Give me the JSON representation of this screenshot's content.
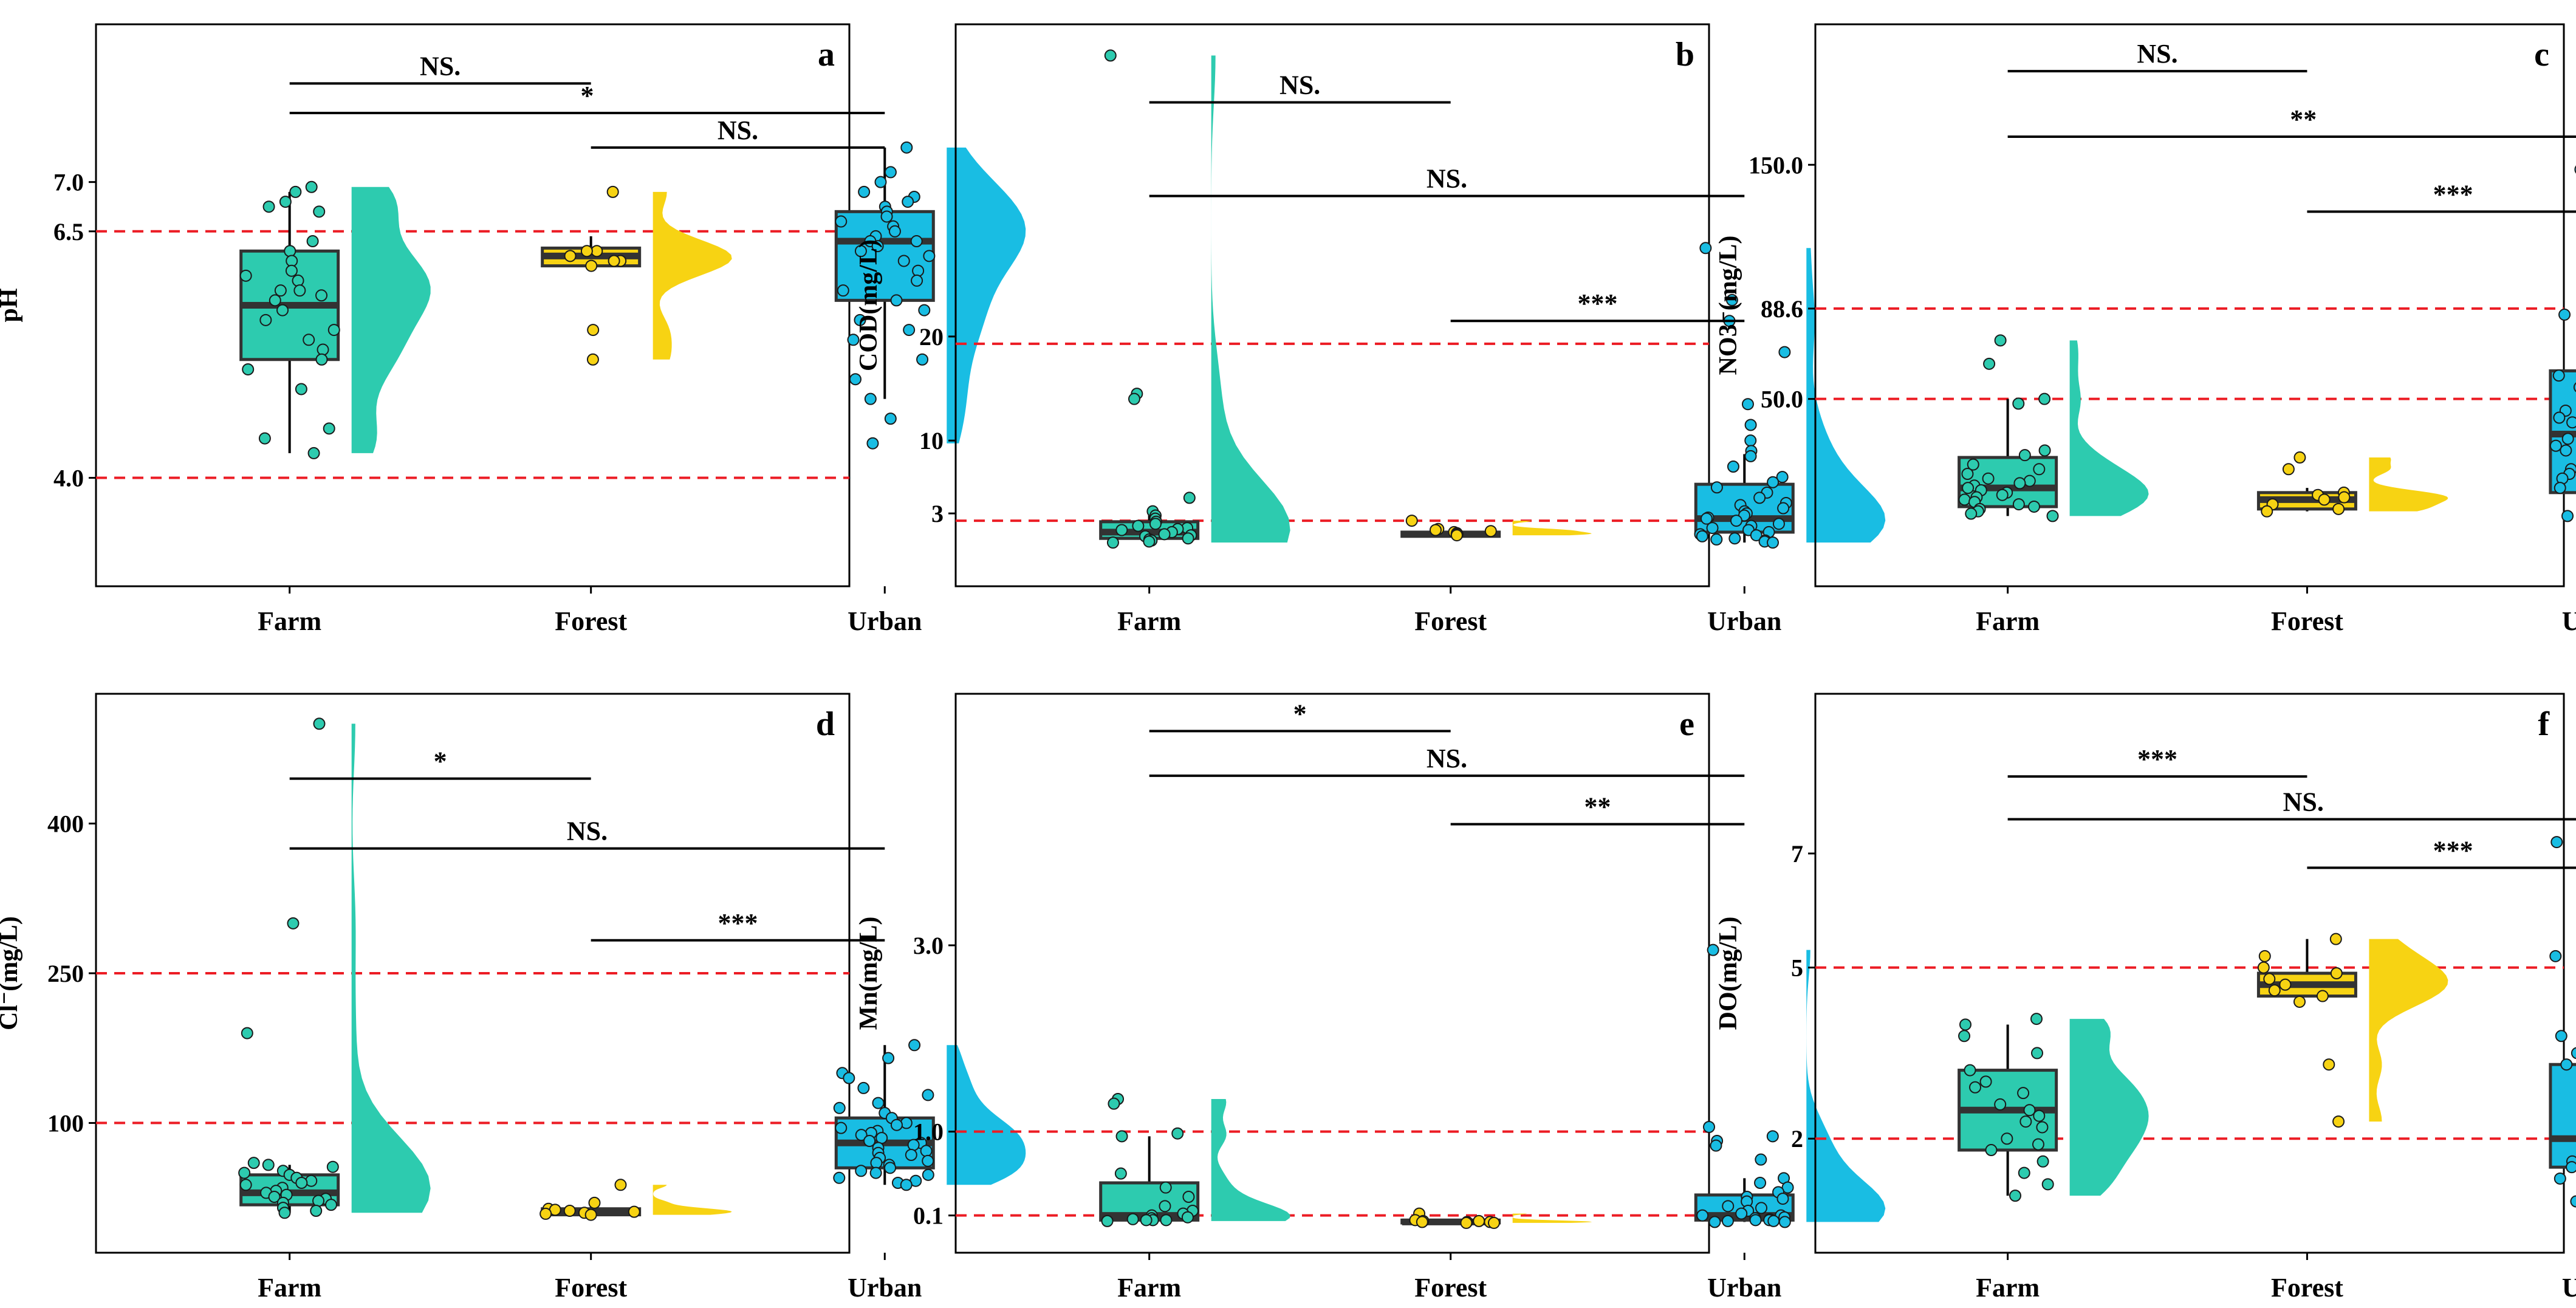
{
  "colors": {
    "farm": "#2dcbaf",
    "forest": "#f7d313",
    "urban": "#19bde3",
    "reference": "#ec1c24",
    "axis": "#000000",
    "median": "#333333"
  },
  "chart_data": [
    {
      "panel": "a",
      "type": "box",
      "ylabel": "pH",
      "ylim": [
        2.9,
        8.6
      ],
      "categories": [
        "Farm",
        "Forest",
        "Urban"
      ],
      "yticks": [
        4.0,
        6.5,
        7.0
      ],
      "ytick_labels": [
        "4.0",
        "6.5",
        "7.0"
      ],
      "reference_lines": [
        4.0,
        6.5
      ],
      "boxes": [
        {
          "group": "Farm",
          "min": 4.25,
          "q1": 5.2,
          "median": 5.75,
          "q3": 6.3,
          "max": 6.9
        },
        {
          "group": "Forest",
          "min": 6.15,
          "q1": 6.15,
          "median": 6.25,
          "q3": 6.33,
          "max": 6.45
        },
        {
          "group": "Urban",
          "min": 4.8,
          "q1": 5.8,
          "median": 6.4,
          "q3": 6.7,
          "max": 7.35
        }
      ],
      "points": {
        "Farm": [
          6.95,
          6.9,
          6.8,
          6.75,
          6.7,
          6.4,
          6.3,
          6.2,
          6.1,
          6.05,
          6.0,
          5.9,
          5.9,
          5.85,
          5.8,
          5.7,
          5.6,
          5.5,
          5.4,
          5.3,
          5.2,
          5.1,
          4.9,
          4.5,
          4.4,
          4.25
        ],
        "Forest": [
          6.9,
          6.3,
          6.3,
          6.25,
          6.2,
          6.2,
          6.15,
          5.5,
          5.2
        ],
        "Urban": [
          7.35,
          7.1,
          7.0,
          6.9,
          6.85,
          6.8,
          6.75,
          6.7,
          6.65,
          6.6,
          6.55,
          6.5,
          6.45,
          6.4,
          6.4,
          6.35,
          6.3,
          6.25,
          6.2,
          6.1,
          6.0,
          5.9,
          5.8,
          5.7,
          5.6,
          5.5,
          5.4,
          5.2,
          5.0,
          4.8,
          4.6,
          4.35
        ]
      },
      "significance": [
        {
          "from": "Farm",
          "to": "Forest",
          "label": "NS.",
          "y": 8.0
        },
        {
          "from": "Farm",
          "to": "Urban",
          "label": "*",
          "y": 7.7
        },
        {
          "from": "Forest",
          "to": "Urban",
          "label": "NS.",
          "y": 7.35
        }
      ],
      "ticks": {
        "x": [
          "Farm",
          "Forest",
          "Urban"
        ]
      }
    },
    {
      "panel": "b",
      "type": "box",
      "ylabel": "COD(mg/L)",
      "ylim": [
        -4,
        50
      ],
      "categories": [
        "Farm",
        "Forest",
        "Urban"
      ],
      "yticks": [
        3,
        10,
        20
      ],
      "ytick_labels": [
        "3",
        "10",
        "20"
      ],
      "reference_lines": [
        2.3,
        19.3
      ],
      "boxes": [
        {
          "group": "Farm",
          "min": 0.2,
          "q1": 0.6,
          "median": 1.2,
          "q3": 2.2,
          "max": 3.0
        },
        {
          "group": "Forest",
          "min": 0.7,
          "q1": 0.8,
          "median": 1.0,
          "q3": 1.2,
          "max": 1.5
        },
        {
          "group": "Urban",
          "min": 0.2,
          "q1": 1.2,
          "median": 2.5,
          "q3": 5.8,
          "max": 8.7
        }
      ],
      "points": {
        "Farm": [
          47.0,
          14.5,
          14.0,
          4.5,
          3.2,
          2.8,
          2.5,
          2.2,
          2.0,
          1.8,
          1.6,
          1.5,
          1.4,
          1.2,
          1.0,
          0.9,
          0.8,
          0.6,
          0.5,
          0.4,
          0.3,
          0.2
        ],
        "Forest": [
          2.3,
          1.5,
          1.4,
          1.3,
          1.2,
          1.1,
          1.0,
          1.0,
          0.9
        ],
        "Urban": [
          28.5,
          23.5,
          21.5,
          18.5,
          13.5,
          11.5,
          10.0,
          9.0,
          8.5,
          7.5,
          6.5,
          6.0,
          5.5,
          5.0,
          4.5,
          4.0,
          3.8,
          3.5,
          3.2,
          3.0,
          2.8,
          2.6,
          2.5,
          2.3,
          2.0,
          1.8,
          1.6,
          1.4,
          1.2,
          1.0,
          0.9,
          0.8,
          0.6,
          0.5,
          0.4,
          0.3,
          0.2
        ]
      },
      "significance": [
        {
          "from": "Farm",
          "to": "Forest",
          "label": "NS.",
          "y": 42.5
        },
        {
          "from": "Farm",
          "to": "Urban",
          "label": "NS.",
          "y": 33.5
        },
        {
          "from": "Forest",
          "to": "Urban",
          "label": "***",
          "y": 21.5
        }
      ],
      "ticks": {
        "x": [
          "Farm",
          "Forest",
          "Urban"
        ]
      }
    },
    {
      "panel": "c",
      "type": "box",
      "ylabel": "NO3⁻(mg/L)",
      "ylim": [
        -30,
        210
      ],
      "categories": [
        "Farm",
        "Forest",
        "Urban"
      ],
      "yticks": [
        50.0,
        88.6,
        150.0
      ],
      "ytick_labels": [
        "50.0",
        "88.6",
        "150.0"
      ],
      "reference_lines": [
        50.0,
        88.6
      ],
      "boxes": [
        {
          "group": "Farm",
          "min": 0,
          "q1": 4,
          "median": 12,
          "q3": 25,
          "max": 50
        },
        {
          "group": "Forest",
          "min": 2,
          "q1": 3,
          "median": 7,
          "q3": 10,
          "max": 12
        },
        {
          "group": "Urban",
          "min": 2,
          "q1": 10,
          "median": 35,
          "q3": 62,
          "max": 121
        }
      ],
      "points": {
        "Farm": [
          75,
          65,
          50,
          48,
          28,
          26,
          22,
          20,
          18,
          16,
          15,
          14,
          13,
          12,
          11,
          10,
          9,
          8,
          7,
          6,
          5,
          4,
          3,
          2,
          1,
          0
        ],
        "Forest": [
          25,
          20,
          10,
          9,
          8,
          7,
          5,
          3,
          2
        ],
        "Urban": [
          198,
          148,
          123,
          109,
          107,
          91,
          86,
          80,
          60,
          55,
          50,
          48,
          45,
          42,
          40,
          38,
          35,
          33,
          30,
          28,
          25,
          22,
          20,
          18,
          16,
          14,
          12,
          10,
          8,
          6,
          4,
          2,
          0
        ]
      },
      "significance": [
        {
          "from": "Farm",
          "to": "Forest",
          "label": "NS.",
          "y": 190
        },
        {
          "from": "Farm",
          "to": "Urban",
          "label": "**",
          "y": 162
        },
        {
          "from": "Forest",
          "to": "Urban",
          "label": "***",
          "y": 130
        }
      ],
      "ticks": {
        "x": [
          "Farm",
          "Forest",
          "Urban"
        ]
      }
    },
    {
      "panel": "d",
      "type": "box",
      "ylabel": "Cl⁻(mg/L)",
      "ylim": [
        -30,
        530
      ],
      "categories": [
        "Farm",
        "Forest",
        "Urban"
      ],
      "yticks": [
        100,
        250,
        400
      ],
      "ytick_labels": [
        "100",
        "250",
        "400"
      ],
      "reference_lines": [
        100,
        250
      ],
      "boxes": [
        {
          "group": "Farm",
          "min": 10,
          "q1": 18,
          "median": 30,
          "q3": 48,
          "max": 58
        },
        {
          "group": "Forest",
          "min": 8,
          "q1": 8,
          "median": 12,
          "q3": 14,
          "max": 16
        },
        {
          "group": "Urban",
          "min": 38,
          "q1": 55,
          "median": 80,
          "q3": 105,
          "max": 178
        }
      ],
      "points": {
        "Farm": [
          500,
          300,
          190,
          60,
          58,
          56,
          52,
          50,
          48,
          45,
          42,
          40,
          38,
          35,
          32,
          30,
          28,
          26,
          24,
          22,
          20,
          18,
          15,
          12,
          10
        ],
        "Forest": [
          38,
          20,
          14,
          13,
          12,
          11,
          10,
          9,
          8
        ],
        "Urban": [
          178,
          165,
          150,
          145,
          135,
          128,
          120,
          115,
          110,
          105,
          100,
          98,
          95,
          92,
          90,
          88,
          85,
          82,
          80,
          78,
          75,
          72,
          70,
          68,
          65,
          62,
          60,
          58,
          55,
          52,
          50,
          48,
          45,
          42,
          40,
          38
        ]
      },
      "significance": [
        {
          "from": "Farm",
          "to": "Forest",
          "label": "*",
          "y": 445
        },
        {
          "from": "Farm",
          "to": "Urban",
          "label": "NS.",
          "y": 375
        },
        {
          "from": "Forest",
          "to": "Urban",
          "label": "***",
          "y": 283
        }
      ],
      "ticks": {
        "x": [
          "Farm",
          "Forest",
          "Urban"
        ]
      }
    },
    {
      "panel": "e",
      "type": "box",
      "ylabel": "Mn(mg/L)",
      "ylim": [
        -0.3,
        5.7
      ],
      "categories": [
        "Farm",
        "Forest",
        "Urban"
      ],
      "yticks": [
        0.1,
        1.0,
        3.0
      ],
      "ytick_labels": [
        "0.1",
        "1.0",
        "3.0"
      ],
      "reference_lines": [
        0.1,
        1.0
      ],
      "boxes": [
        {
          "group": "Farm",
          "min": 0.05,
          "q1": 0.05,
          "median": 0.1,
          "q3": 0.45,
          "max": 0.95
        },
        {
          "group": "Forest",
          "min": 0.02,
          "q1": 0.02,
          "median": 0.03,
          "q3": 0.05,
          "max": 0.06
        },
        {
          "group": "Urban",
          "min": 0.03,
          "q1": 0.05,
          "median": 0.1,
          "q3": 0.32,
          "max": 0.5
        }
      ],
      "points": {
        "Farm": [
          1.35,
          1.3,
          0.98,
          0.95,
          0.55,
          0.4,
          0.3,
          0.2,
          0.15,
          0.12,
          0.1,
          0.08,
          0.07,
          0.06,
          0.05,
          0.05,
          0.05,
          0.04
        ],
        "Forest": [
          0.12,
          0.05,
          0.04,
          0.04,
          0.03,
          0.03,
          0.03,
          0.02,
          0.02
        ],
        "Urban": [
          2.95,
          1.05,
          0.95,
          0.9,
          0.85,
          0.7,
          0.5,
          0.45,
          0.4,
          0.35,
          0.3,
          0.28,
          0.25,
          0.2,
          0.18,
          0.15,
          0.12,
          0.1,
          0.1,
          0.08,
          0.07,
          0.06,
          0.05,
          0.05,
          0.04,
          0.04,
          0.03,
          0.03
        ]
      },
      "significance": [
        {
          "from": "Farm",
          "to": "Forest",
          "label": "*",
          "y": 5.3
        },
        {
          "from": "Farm",
          "to": "Urban",
          "label": "NS.",
          "y": 4.82
        },
        {
          "from": "Forest",
          "to": "Urban",
          "label": "**",
          "y": 4.3
        }
      ],
      "ticks": {
        "x": [
          "Farm",
          "Forest",
          "Urban"
        ]
      }
    },
    {
      "panel": "f",
      "type": "box",
      "ylabel": "DO(mg/L)",
      "ylim": [
        0.0,
        9.8
      ],
      "categories": [
        "Farm",
        "Forest",
        "Urban"
      ],
      "yticks": [
        2,
        5,
        7
      ],
      "ytick_labels": [
        "2",
        "5",
        "7"
      ],
      "reference_lines": [
        2,
        5
      ],
      "boxes": [
        {
          "group": "Farm",
          "min": 1.0,
          "q1": 1.8,
          "median": 2.5,
          "q3": 3.2,
          "max": 4.0
        },
        {
          "group": "Forest",
          "min": 4.5,
          "q1": 4.5,
          "median": 4.7,
          "q3": 4.9,
          "max": 5.5
        },
        {
          "group": "Urban",
          "min": 0.9,
          "q1": 1.5,
          "median": 2.0,
          "q3": 3.3,
          "max": 5.1
        }
      ],
      "points": {
        "Farm": [
          4.1,
          4.0,
          3.8,
          3.5,
          3.2,
          3.0,
          2.9,
          2.8,
          2.6,
          2.5,
          2.4,
          2.3,
          2.2,
          2.0,
          1.9,
          1.8,
          1.6,
          1.4,
          1.2,
          1.0
        ],
        "Forest": [
          5.5,
          5.2,
          5.0,
          4.9,
          4.8,
          4.7,
          4.6,
          4.5,
          4.4,
          3.3,
          2.3
        ],
        "Urban": [
          8.2,
          7.2,
          5.2,
          4.0,
          3.8,
          3.5,
          3.3,
          3.2,
          3.1,
          3.0,
          2.9,
          2.8,
          2.6,
          2.5,
          2.4,
          2.2,
          2.1,
          2.0,
          1.9,
          1.8,
          1.7,
          1.6,
          1.5,
          1.4,
          1.3,
          1.2,
          1.1,
          1.0,
          0.9
        ]
      },
      "significance": [
        {
          "from": "Farm",
          "to": "Forest",
          "label": "***",
          "y": 8.35
        },
        {
          "from": "Farm",
          "to": "Urban",
          "label": "NS.",
          "y": 7.6
        },
        {
          "from": "Forest",
          "to": "Urban",
          "label": "***",
          "y": 6.75
        }
      ],
      "ticks": {
        "x": [
          "Farm",
          "Forest",
          "Urban"
        ]
      }
    }
  ]
}
